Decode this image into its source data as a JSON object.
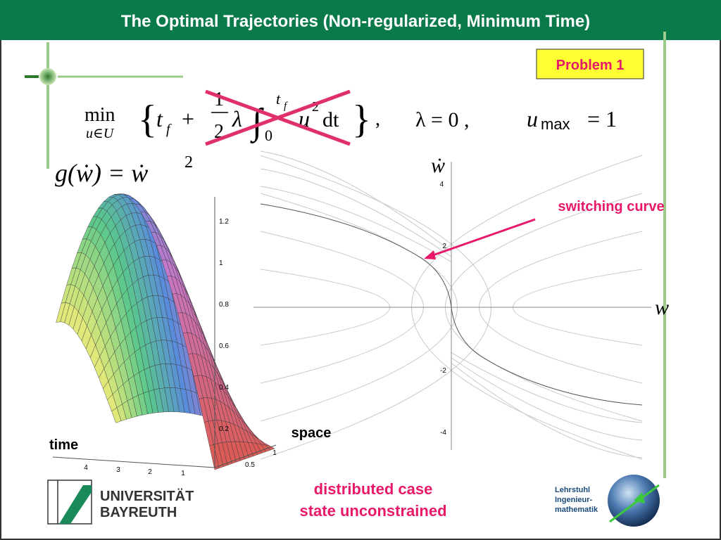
{
  "title": "The Optimal Trajectories (Non-regularized, Minimum Time)",
  "badge": "Problem 1",
  "formula": [
    "min",
    "u∈U",
    "{",
    "t",
    "f",
    "+",
    "1",
    "2",
    "λ",
    "∫",
    "t",
    "f",
    "0",
    "u",
    "2",
    "dt",
    "}",
    ",",
    "λ = 0 ,",
    "u",
    "max",
    "= 1"
  ],
  "cost": [
    "g(ẇ) = ẇ",
    "2"
  ],
  "phase_plot": {
    "y_axis_label": "ẇ",
    "x_axis_label": "w",
    "y_ticks": [
      4,
      2,
      -2,
      -4
    ],
    "annotation": "switching curve"
  },
  "surface_plot": {
    "z_ticks": [
      1.2,
      1,
      0.8,
      0.6,
      0.4,
      0.2
    ],
    "time_ticks": [
      4,
      3,
      2,
      1
    ],
    "space_ticks": [
      0.5,
      1
    ],
    "time_label": "time",
    "space_label": "space"
  },
  "caption": [
    "distributed case",
    "state unconstrained"
  ],
  "university": [
    "UNIVERSITÄT",
    "BAYREUTH"
  ],
  "chair": [
    "Lehrstuhl",
    "Ingenieur-",
    "mathematik"
  ]
}
